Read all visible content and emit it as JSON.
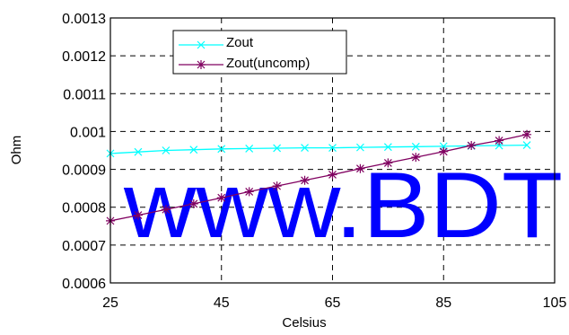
{
  "chart_data": {
    "type": "line",
    "title": "",
    "xlabel": "Celsius",
    "ylabel": "Ohm",
    "xlim": [
      25,
      105
    ],
    "ylim": [
      0.0006,
      0.0013
    ],
    "x_ticks": [
      "25",
      "45",
      "65",
      "85",
      "105"
    ],
    "y_ticks": [
      "0.0006",
      "0.0007",
      "0.0008",
      "0.0009",
      "0.001",
      "0.0011",
      "0.0012",
      "0.0013"
    ],
    "grid": "dashed",
    "legend_position": "top-left",
    "series": [
      {
        "name": "Zout",
        "color": "#00ffff",
        "marker": "x",
        "x": [
          25,
          30,
          35,
          40,
          45,
          50,
          55,
          60,
          65,
          70,
          75,
          80,
          85,
          90,
          95,
          100
        ],
        "y": [
          0.000942,
          0.000946,
          0.00095,
          0.000952,
          0.000954,
          0.000955,
          0.000956,
          0.000957,
          0.000957,
          0.000958,
          0.000959,
          0.00096,
          0.000961,
          0.000962,
          0.000963,
          0.000964
        ]
      },
      {
        "name": "Zout(uncomp)",
        "color": "#800060",
        "marker": "asterisk",
        "x": [
          25,
          30,
          35,
          40,
          45,
          50,
          55,
          60,
          65,
          70,
          75,
          80,
          85,
          90,
          95,
          100
        ],
        "y": [
          0.000764,
          0.000779,
          0.000794,
          0.000809,
          0.000825,
          0.000841,
          0.000856,
          0.000871,
          0.000886,
          0.000902,
          0.000917,
          0.000932,
          0.000947,
          0.000963,
          0.000976,
          0.000992
        ]
      }
    ],
    "watermark": "www.BDTI"
  }
}
